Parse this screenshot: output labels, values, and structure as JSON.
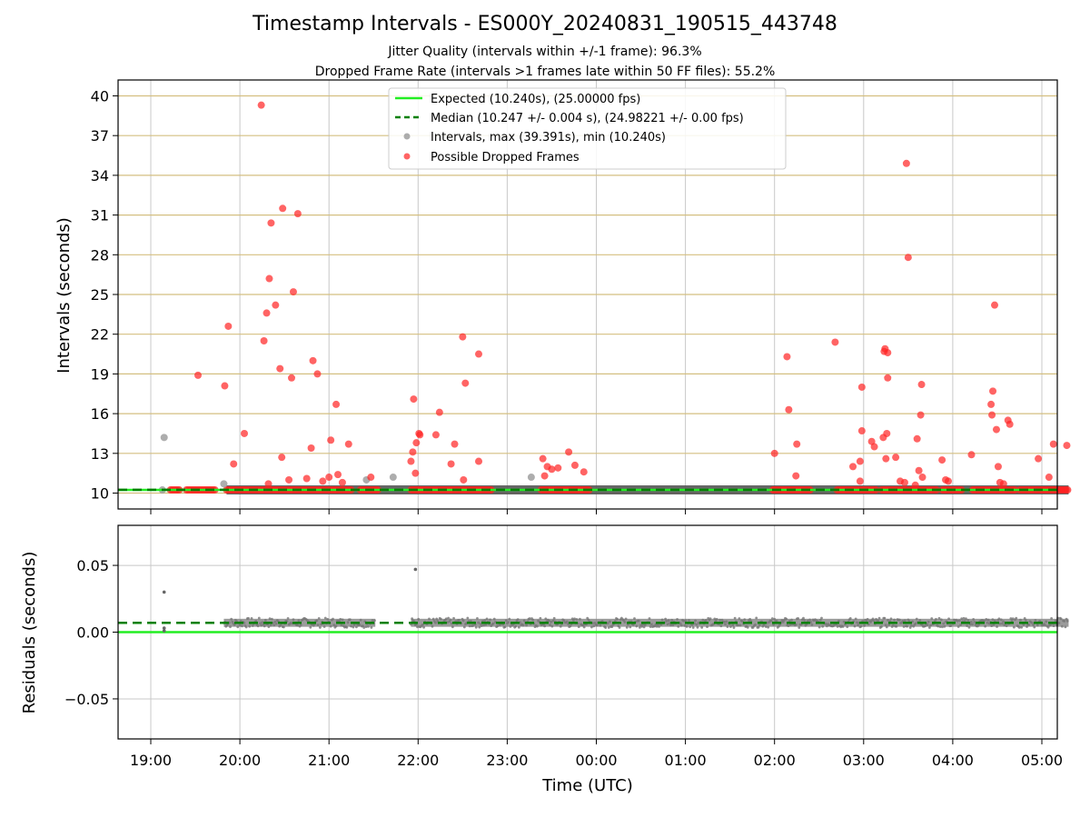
{
  "title": "Timestamp Intervals - ES000Y_20240831_190515_443748",
  "subtitle_1": "Jitter Quality (intervals within +/-1 frame): 96.3%",
  "subtitle_2": "Dropped Frame Rate (intervals >1 frames late within 50 FF files): 55.2%",
  "colors": {
    "expected": "#22ee22",
    "median": "#008000",
    "intervals": "#999999",
    "dropped": "#ff2222",
    "hgrid_top": "#d4bf80",
    "grid": "#c8c8c8"
  },
  "chart_data": [
    {
      "type": "scatter",
      "ylabel": "Intervals (seconds)",
      "x_ticks": [
        "19:00",
        "20:00",
        "21:00",
        "22:00",
        "23:00",
        "00:00",
        "01:00",
        "02:00",
        "03:00",
        "04:00",
        "05:00"
      ],
      "ylim": [
        8.8,
        41.2
      ],
      "y_ticks": [
        10,
        13,
        16,
        19,
        22,
        25,
        28,
        31,
        34,
        37,
        40
      ],
      "legend": [
        "Expected (10.240s), (25.00000 fps)",
        "Median (10.247 +/- 0.004 s), (24.98221 +/- 0.00 fps)",
        "Intervals, max (39.391s), min (10.240s)",
        "Possible Dropped Frames"
      ],
      "legend_position": "upper-center",
      "expected_interval": 10.24,
      "median_interval": 10.247,
      "intervals_gray": [
        {
          "t": 19.15,
          "v": 14.2
        },
        {
          "t": 19.82,
          "v": 10.7
        },
        {
          "t": 21.42,
          "v": 11.0
        },
        {
          "t": 21.72,
          "v": 11.2
        },
        {
          "t": 23.27,
          "v": 11.2
        }
      ],
      "dropped_frames": [
        {
          "t": 19.53,
          "v": 18.9
        },
        {
          "t": 19.83,
          "v": 18.1
        },
        {
          "t": 19.87,
          "v": 22.6
        },
        {
          "t": 19.93,
          "v": 12.2
        },
        {
          "t": 20.05,
          "v": 14.5
        },
        {
          "t": 20.24,
          "v": 39.3
        },
        {
          "t": 20.27,
          "v": 21.5
        },
        {
          "t": 20.3,
          "v": 23.6
        },
        {
          "t": 20.33,
          "v": 26.2
        },
        {
          "t": 20.35,
          "v": 30.4
        },
        {
          "t": 20.4,
          "v": 24.2
        },
        {
          "t": 20.45,
          "v": 19.4
        },
        {
          "t": 20.47,
          "v": 12.7
        },
        {
          "t": 20.48,
          "v": 31.5
        },
        {
          "t": 20.58,
          "v": 18.7
        },
        {
          "t": 20.6,
          "v": 25.2
        },
        {
          "t": 20.65,
          "v": 31.1
        },
        {
          "t": 20.75,
          "v": 11.1
        },
        {
          "t": 20.82,
          "v": 20.0
        },
        {
          "t": 20.87,
          "v": 19.0
        },
        {
          "t": 20.8,
          "v": 13.4
        },
        {
          "t": 20.93,
          "v": 10.9
        },
        {
          "t": 21.0,
          "v": 11.2
        },
        {
          "t": 21.02,
          "v": 14.0
        },
        {
          "t": 21.08,
          "v": 16.7
        },
        {
          "t": 21.1,
          "v": 11.4
        },
        {
          "t": 21.15,
          "v": 10.8
        },
        {
          "t": 21.22,
          "v": 13.7
        },
        {
          "t": 21.47,
          "v": 11.2
        },
        {
          "t": 20.32,
          "v": 10.7
        },
        {
          "t": 20.55,
          "v": 11.0
        },
        {
          "t": 21.92,
          "v": 12.4
        },
        {
          "t": 21.94,
          "v": 13.1
        },
        {
          "t": 21.95,
          "v": 17.1
        },
        {
          "t": 21.97,
          "v": 11.5
        },
        {
          "t": 21.98,
          "v": 13.8
        },
        {
          "t": 22.01,
          "v": 14.5
        },
        {
          "t": 22.02,
          "v": 14.4
        },
        {
          "t": 22.2,
          "v": 14.4
        },
        {
          "t": 22.24,
          "v": 16.1
        },
        {
          "t": 22.37,
          "v": 12.2
        },
        {
          "t": 22.41,
          "v": 13.7
        },
        {
          "t": 22.5,
          "v": 21.8
        },
        {
          "t": 22.53,
          "v": 18.3
        },
        {
          "t": 22.51,
          "v": 11.0
        },
        {
          "t": 22.68,
          "v": 20.5
        },
        {
          "t": 22.68,
          "v": 12.4
        },
        {
          "t": 23.4,
          "v": 12.6
        },
        {
          "t": 23.42,
          "v": 11.3
        },
        {
          "t": 23.45,
          "v": 12.0
        },
        {
          "t": 23.5,
          "v": 11.8
        },
        {
          "t": 23.57,
          "v": 11.9
        },
        {
          "t": 23.69,
          "v": 13.1
        },
        {
          "t": 23.76,
          "v": 12.1
        },
        {
          "t": 23.86,
          "v": 11.6
        },
        {
          "t": 26.0,
          "v": 13.0
        },
        {
          "t": 26.14,
          "v": 20.3
        },
        {
          "t": 26.16,
          "v": 16.3
        },
        {
          "t": 26.25,
          "v": 13.7
        },
        {
          "t": 26.24,
          "v": 11.3
        },
        {
          "t": 26.68,
          "v": 21.4
        },
        {
          "t": 26.88,
          "v": 12.0
        },
        {
          "t": 26.96,
          "v": 12.4
        },
        {
          "t": 26.96,
          "v": 10.9
        },
        {
          "t": 26.98,
          "v": 14.7
        },
        {
          "t": 26.98,
          "v": 18.0
        },
        {
          "t": 27.09,
          "v": 13.9
        },
        {
          "t": 27.12,
          "v": 13.5
        },
        {
          "t": 27.22,
          "v": 14.2
        },
        {
          "t": 27.23,
          "v": 20.7
        },
        {
          "t": 27.24,
          "v": 20.9
        },
        {
          "t": 27.25,
          "v": 12.6
        },
        {
          "t": 27.26,
          "v": 14.5
        },
        {
          "t": 27.27,
          "v": 20.6
        },
        {
          "t": 27.27,
          "v": 18.7
        },
        {
          "t": 27.36,
          "v": 12.7
        },
        {
          "t": 27.41,
          "v": 10.9
        },
        {
          "t": 27.46,
          "v": 10.8
        },
        {
          "t": 27.48,
          "v": 34.9
        },
        {
          "t": 27.5,
          "v": 27.8
        },
        {
          "t": 27.58,
          "v": 10.6
        },
        {
          "t": 27.6,
          "v": 14.1
        },
        {
          "t": 27.62,
          "v": 11.7
        },
        {
          "t": 27.64,
          "v": 15.9
        },
        {
          "t": 27.65,
          "v": 18.2
        },
        {
          "t": 27.66,
          "v": 11.2
        },
        {
          "t": 27.88,
          "v": 12.5
        },
        {
          "t": 27.92,
          "v": 11.0
        },
        {
          "t": 27.95,
          "v": 10.9
        },
        {
          "t": 28.21,
          "v": 12.9
        },
        {
          "t": 28.43,
          "v": 16.7
        },
        {
          "t": 28.44,
          "v": 15.9
        },
        {
          "t": 28.45,
          "v": 17.7
        },
        {
          "t": 28.47,
          "v": 24.2
        },
        {
          "t": 28.49,
          "v": 14.8
        },
        {
          "t": 28.51,
          "v": 12.0
        },
        {
          "t": 28.53,
          "v": 10.8
        },
        {
          "t": 28.57,
          "v": 10.7
        },
        {
          "t": 28.62,
          "v": 15.5
        },
        {
          "t": 28.64,
          "v": 15.2
        },
        {
          "t": 28.96,
          "v": 12.6
        },
        {
          "t": 29.08,
          "v": 11.2
        },
        {
          "t": 29.13,
          "v": 13.7
        },
        {
          "t": 29.28,
          "v": 13.6
        }
      ],
      "baseline_segments": [
        [
          19.22,
          19.32
        ],
        [
          19.4,
          19.72
        ],
        [
          19.85,
          21.25
        ],
        [
          21.35,
          21.55
        ],
        [
          21.92,
          22.82
        ],
        [
          23.38,
          23.92
        ],
        [
          25.98,
          26.4
        ],
        [
          26.7,
          27.15
        ],
        [
          27.2,
          27.82
        ],
        [
          27.88,
          28.1
        ],
        [
          28.22,
          28.7
        ],
        [
          28.75,
          29.3
        ]
      ]
    },
    {
      "type": "scatter",
      "xlabel": "Time (UTC)",
      "ylabel": "Residuals (seconds)",
      "ylim": [
        -0.08,
        0.08
      ],
      "y_ticks": [
        "0.05",
        "0.00",
        "−0.05"
      ],
      "y_tick_values": [
        0.05,
        0.0,
        -0.05
      ],
      "expected_residual": 0.0,
      "median_residual": 0.007,
      "outliers": [
        {
          "t": 19.15,
          "v": 0.03
        },
        {
          "t": 21.97,
          "v": 0.047
        },
        {
          "t": 19.15,
          "v": 0.003
        },
        {
          "t": 19.15,
          "v": 0.001
        }
      ],
      "band_center": 0.007,
      "band_halfwidth": 0.003
    }
  ]
}
